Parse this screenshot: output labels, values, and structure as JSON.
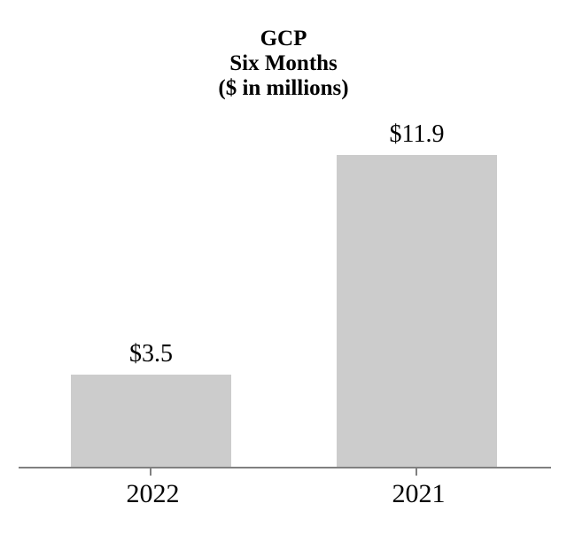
{
  "chart_data": {
    "type": "bar",
    "title": "GCP Six Months ($ in millions)",
    "title_lines": [
      "GCP",
      "Six Months",
      "($ in millions)"
    ],
    "categories": [
      "2022",
      "2021"
    ],
    "values": [
      3.5,
      11.9
    ],
    "data_labels": [
      "$3.5",
      "$11.9"
    ],
    "xlabel": "",
    "ylabel": "",
    "ylim": [
      0,
      11.9
    ],
    "grid": false,
    "legend": false,
    "bar_color": "#cccccc",
    "axis_color": "#808080",
    "text_color": "#000000"
  }
}
